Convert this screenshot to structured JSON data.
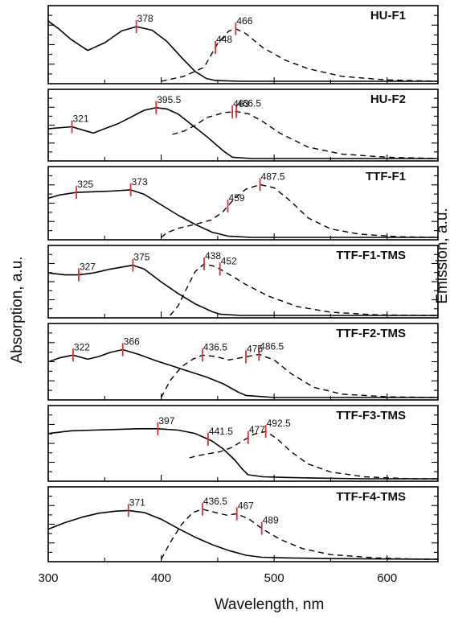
{
  "chart_data": {
    "type": "line",
    "xlabel": "Wavelength, nm",
    "ylabel_left": "Absorption, a.u.",
    "ylabel_right": "Emission, a.u.",
    "xlim": [
      300,
      645
    ],
    "xticks": [
      300,
      400,
      500,
      600
    ],
    "panels": [
      {
        "title": "HU-F1",
        "peaks": [
          {
            "x": 378,
            "label": "378"
          },
          {
            "x": 466,
            "label": "466"
          },
          {
            "x": 448,
            "label": "448"
          }
        ],
        "series": [
          {
            "style": "solid",
            "x": [
              300,
              310,
              320,
              335,
              350,
              365,
              378,
              392,
              405,
              418,
              430,
              440,
              448,
              470,
              520,
              645
            ],
            "y": [
              0.86,
              0.74,
              0.6,
              0.44,
              0.55,
              0.72,
              0.78,
              0.73,
              0.57,
              0.34,
              0.14,
              0.04,
              0.01,
              0.0,
              0.0,
              0.0
            ]
          },
          {
            "style": "dashed",
            "x": [
              400,
              420,
              438,
              450,
              460,
              466,
              475,
              490,
              510,
              530,
              560,
              600,
              645
            ],
            "y": [
              0.0,
              0.07,
              0.2,
              0.54,
              0.72,
              0.75,
              0.68,
              0.48,
              0.3,
              0.18,
              0.07,
              0.02,
              0.0
            ]
          }
        ]
      },
      {
        "title": "HU-F2",
        "peaks": [
          {
            "x": 321,
            "label": "321"
          },
          {
            "x": 395.5,
            "label": "395.5"
          },
          {
            "x": 466.5,
            "label": "466.5"
          },
          {
            "x": 463,
            "label": "463"
          }
        ],
        "series": [
          {
            "style": "solid",
            "x": [
              300,
              321,
              332,
              340,
              350,
              362,
              372,
              385,
              395.5,
              405,
              415,
              425,
              440,
              455,
              463,
              480,
              520,
              645
            ],
            "y": [
              0.47,
              0.5,
              0.44,
              0.4,
              0.47,
              0.55,
              0.64,
              0.76,
              0.8,
              0.78,
              0.7,
              0.56,
              0.35,
              0.12,
              0.02,
              0.0,
              0.0,
              0.0
            ]
          },
          {
            "style": "dashed",
            "x": [
              410,
              420,
              430,
              440,
              455,
              466.5,
              478,
              490,
              505,
              530,
              560,
              600,
              645
            ],
            "y": [
              0.38,
              0.43,
              0.52,
              0.64,
              0.72,
              0.74,
              0.7,
              0.58,
              0.4,
              0.18,
              0.07,
              0.02,
              0.0
            ]
          }
        ]
      },
      {
        "title": "TTF-F1",
        "peaks": [
          {
            "x": 325,
            "label": "325"
          },
          {
            "x": 373,
            "label": "373"
          },
          {
            "x": 487.5,
            "label": "487.5"
          },
          {
            "x": 459,
            "label": "459"
          }
        ],
        "series": [
          {
            "style": "solid",
            "x": [
              300,
              310,
              325,
              340,
              355,
              373,
              385,
              400,
              415,
              430,
              445,
              459,
              480,
              520,
              645
            ],
            "y": [
              0.6,
              0.65,
              0.69,
              0.7,
              0.71,
              0.73,
              0.66,
              0.5,
              0.34,
              0.2,
              0.08,
              0.02,
              0.0,
              0.0,
              0.0
            ]
          },
          {
            "style": "dashed",
            "x": [
              400,
              405,
              415,
              430,
              445,
              455,
              465,
              475,
              487.5,
              500,
              515,
              530,
              550,
              575,
              610,
              645
            ],
            "y": [
              0.0,
              0.07,
              0.14,
              0.2,
              0.27,
              0.4,
              0.6,
              0.74,
              0.81,
              0.76,
              0.55,
              0.3,
              0.13,
              0.05,
              0.01,
              0.0
            ]
          }
        ]
      },
      {
        "title": "TTF-F1-TMS",
        "peaks": [
          {
            "x": 327,
            "label": "327"
          },
          {
            "x": 375,
            "label": "375"
          },
          {
            "x": 438,
            "label": "438"
          },
          {
            "x": 452,
            "label": "452"
          }
        ],
        "series": [
          {
            "style": "solid",
            "x": [
              300,
              315,
              327,
              340,
              355,
              375,
              385,
              400,
              415,
              430,
              445,
              452,
              470,
              520,
              645
            ],
            "y": [
              0.66,
              0.63,
              0.63,
              0.66,
              0.72,
              0.78,
              0.72,
              0.52,
              0.34,
              0.18,
              0.06,
              0.02,
              0.0,
              0.0,
              0.0
            ]
          },
          {
            "style": "dashed",
            "x": [
              408,
              415,
              422,
              430,
              438,
              448,
              460,
              475,
              495,
              520,
              550,
              590,
              630,
              645
            ],
            "y": [
              0.0,
              0.15,
              0.4,
              0.68,
              0.8,
              0.76,
              0.64,
              0.48,
              0.3,
              0.14,
              0.05,
              0.01,
              0.0,
              0.0
            ]
          }
        ]
      },
      {
        "title": "TTF-F2-TMS",
        "peaks": [
          {
            "x": 322,
            "label": "322"
          },
          {
            "x": 366,
            "label": "366"
          },
          {
            "x": 436.5,
            "label": "436.5"
          },
          {
            "x": 486.5,
            "label": "486.5"
          },
          {
            "x": 475,
            "label": "475"
          }
        ],
        "series": [
          {
            "style": "solid",
            "x": [
              300,
              310,
              322,
              335,
              345,
              355,
              366,
              380,
              395,
              410,
              425,
              440,
              455,
              468,
              475,
              500,
              645
            ],
            "y": [
              0.52,
              0.58,
              0.62,
              0.56,
              0.6,
              0.66,
              0.7,
              0.63,
              0.54,
              0.46,
              0.38,
              0.3,
              0.2,
              0.08,
              0.03,
              0.0,
              0.0
            ]
          },
          {
            "style": "dashed",
            "x": [
              400,
              408,
              418,
              428,
              436.5,
              448,
              460,
              470,
              486.5,
              500,
              515,
              535,
              560,
              600,
              645
            ],
            "y": [
              0.0,
              0.25,
              0.45,
              0.56,
              0.62,
              0.6,
              0.55,
              0.58,
              0.63,
              0.55,
              0.35,
              0.15,
              0.05,
              0.01,
              0.0
            ]
          }
        ]
      },
      {
        "title": "TTF-F3-TMS",
        "peaks": [
          {
            "x": 397,
            "label": "397"
          },
          {
            "x": 441.5,
            "label": "441.5"
          },
          {
            "x": 492.5,
            "label": "492.5"
          },
          {
            "x": 477,
            "label": "477"
          }
        ],
        "series": [
          {
            "style": "solid",
            "x": [
              300,
              320,
              340,
              360,
              380,
              397,
              415,
              430,
              445,
              455,
              465,
              472,
              477,
              490,
              510,
              540,
              580,
              645
            ],
            "y": [
              0.67,
              0.71,
              0.72,
              0.73,
              0.74,
              0.74,
              0.72,
              0.67,
              0.56,
              0.44,
              0.28,
              0.14,
              0.06,
              0.03,
              0.02,
              0.01,
              0.0,
              0.0
            ]
          },
          {
            "style": "dashed",
            "x": [
              425,
              432,
              441.5,
              452,
              462,
              472,
              482,
              492.5,
              502,
              515,
              530,
              550,
              580,
              620,
              645
            ],
            "y": [
              0.31,
              0.34,
              0.37,
              0.4,
              0.46,
              0.56,
              0.66,
              0.7,
              0.6,
              0.4,
              0.22,
              0.1,
              0.03,
              0.0,
              0.0
            ]
          }
        ]
      },
      {
        "title": "TTF-F4-TMS",
        "peaks": [
          {
            "x": 371,
            "label": "371"
          },
          {
            "x": 436.5,
            "label": "436.5"
          },
          {
            "x": 467,
            "label": "467"
          },
          {
            "x": 489,
            "label": "489"
          }
        ],
        "series": [
          {
            "style": "solid",
            "x": [
              300,
              315,
              330,
              345,
              360,
              371,
              385,
              400,
              415,
              430,
              445,
              460,
              475,
              489,
              510,
              550,
              645
            ],
            "y": [
              0.45,
              0.55,
              0.63,
              0.69,
              0.72,
              0.73,
              0.7,
              0.6,
              0.46,
              0.33,
              0.22,
              0.13,
              0.06,
              0.03,
              0.02,
              0.01,
              0.0
            ]
          },
          {
            "style": "dashed",
            "x": [
              400,
              408,
              418,
              428,
              436.5,
              448,
              458,
              467,
              478,
              490,
              505,
              525,
              550,
              590,
              630,
              645
            ],
            "y": [
              0.0,
              0.25,
              0.52,
              0.7,
              0.75,
              0.7,
              0.66,
              0.68,
              0.6,
              0.45,
              0.3,
              0.16,
              0.07,
              0.02,
              0.0,
              0.0
            ]
          }
        ]
      }
    ]
  }
}
